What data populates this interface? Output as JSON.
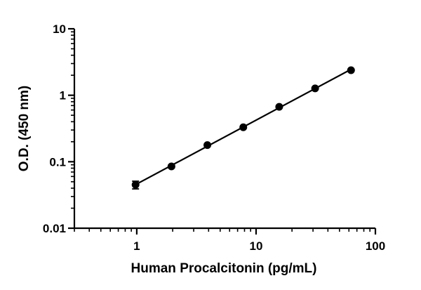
{
  "chart_data": {
    "type": "scatter",
    "xlabel": "Human Procalcitonin (pg/mL)",
    "ylabel": "O.D. (450 nm)",
    "x_scale": "log",
    "y_scale": "log",
    "xlim": [
      0.3,
      100
    ],
    "ylim": [
      0.01,
      10
    ],
    "x_ticks": [
      {
        "value": 1,
        "label": "1"
      },
      {
        "value": 10,
        "label": "10"
      },
      {
        "value": 100,
        "label": "100"
      }
    ],
    "y_ticks": [
      {
        "value": 0.01,
        "label": "0.01"
      },
      {
        "value": 0.1,
        "label": "0.1"
      },
      {
        "value": 1,
        "label": "1"
      },
      {
        "value": 10,
        "label": "10"
      }
    ],
    "grid": false,
    "legend": "none",
    "series": [
      {
        "x": [
          0.977,
          1.953,
          3.906,
          7.813,
          15.625,
          31.25,
          62.5
        ],
        "y": [
          0.045,
          0.085,
          0.178,
          0.33,
          0.67,
          1.27,
          2.38
        ],
        "y_error": [
          0.006,
          0.004,
          0.006,
          0.01,
          0.02,
          0.03,
          0.05
        ],
        "fit_line": true
      }
    ],
    "colors": {
      "points": "#000000",
      "line": "#000000",
      "axes": "#000000"
    }
  }
}
